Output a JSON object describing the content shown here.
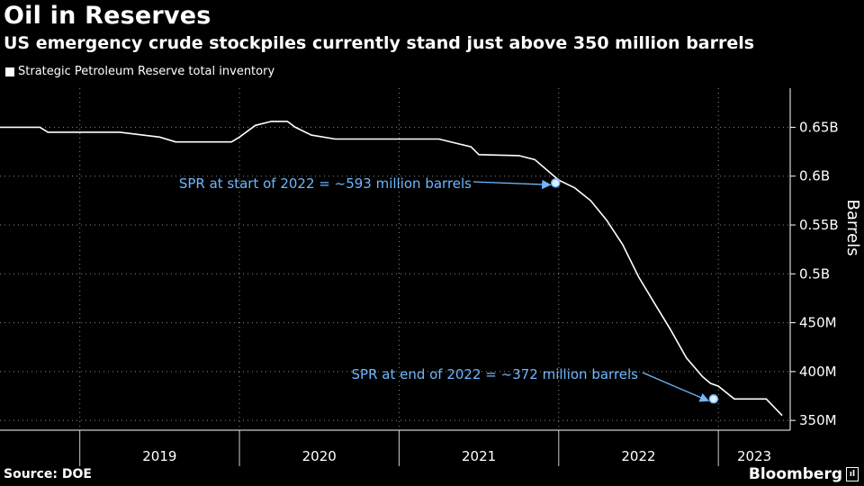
{
  "title": "Oil in Reserves",
  "subtitle": "US emergency crude stockpiles currently stand just above 350 million barrels",
  "legend_label": "Strategic Petroleum Reserve total inventory",
  "source": "Source: DOE",
  "brand": "Bloomberg",
  "colors": {
    "background": "#000000",
    "line": "#ffffff",
    "annotation": "#6fb7ff",
    "grid": "#ffffff"
  },
  "chart_data": {
    "type": "line",
    "title": "Oil in Reserves",
    "ylabel": "Barrels",
    "xlabel": "",
    "ylim": [
      340000000,
      690000000
    ],
    "xlim": [
      2018.5,
      2023.45
    ],
    "grid": true,
    "legend_placement": "top-left",
    "y_ticks": [
      {
        "value": 350000000,
        "label": "350M"
      },
      {
        "value": 400000000,
        "label": "400M"
      },
      {
        "value": 450000000,
        "label": "450M"
      },
      {
        "value": 500000000,
        "label": "0.5B"
      },
      {
        "value": 550000000,
        "label": "0.55B"
      },
      {
        "value": 600000000,
        "label": "0.6B"
      },
      {
        "value": 650000000,
        "label": "0.65B"
      }
    ],
    "x_ticks": [
      "2019",
      "2020",
      "2021",
      "2022",
      "2023"
    ],
    "series": [
      {
        "name": "Strategic Petroleum Reserve total inventory",
        "x": [
          2018.5,
          2018.75,
          2018.8,
          2019.0,
          2019.25,
          2019.5,
          2019.6,
          2019.75,
          2019.95,
          2020.0,
          2020.1,
          2020.2,
          2020.3,
          2020.35,
          2020.45,
          2020.6,
          2020.75,
          2021.0,
          2021.25,
          2021.45,
          2021.5,
          2021.75,
          2021.85,
          2021.95,
          2022.0,
          2022.1,
          2022.2,
          2022.3,
          2022.4,
          2022.5,
          2022.6,
          2022.7,
          2022.8,
          2022.9,
          2022.95,
          2023.0,
          2023.1,
          2023.2,
          2023.3,
          2023.4
        ],
        "values": [
          650000000,
          650000000,
          645000000,
          645000000,
          645000000,
          640000000,
          635000000,
          635000000,
          635000000,
          640000000,
          652000000,
          656000000,
          656000000,
          650000000,
          642000000,
          638000000,
          638000000,
          638000000,
          638000000,
          630000000,
          622000000,
          621000000,
          617000000,
          603000000,
          596000000,
          588000000,
          575000000,
          555000000,
          530000000,
          497000000,
          470000000,
          443000000,
          414000000,
          395000000,
          388000000,
          385000000,
          372000000,
          372000000,
          372000000,
          355000000
        ]
      }
    ],
    "annotations": [
      {
        "text": "SPR at start of 2022 = ~593 million barrels",
        "x": 2021.98,
        "y": 593000000
      },
      {
        "text": "SPR at end of 2022 = ~372 million barrels",
        "x": 2022.97,
        "y": 372000000
      }
    ]
  }
}
